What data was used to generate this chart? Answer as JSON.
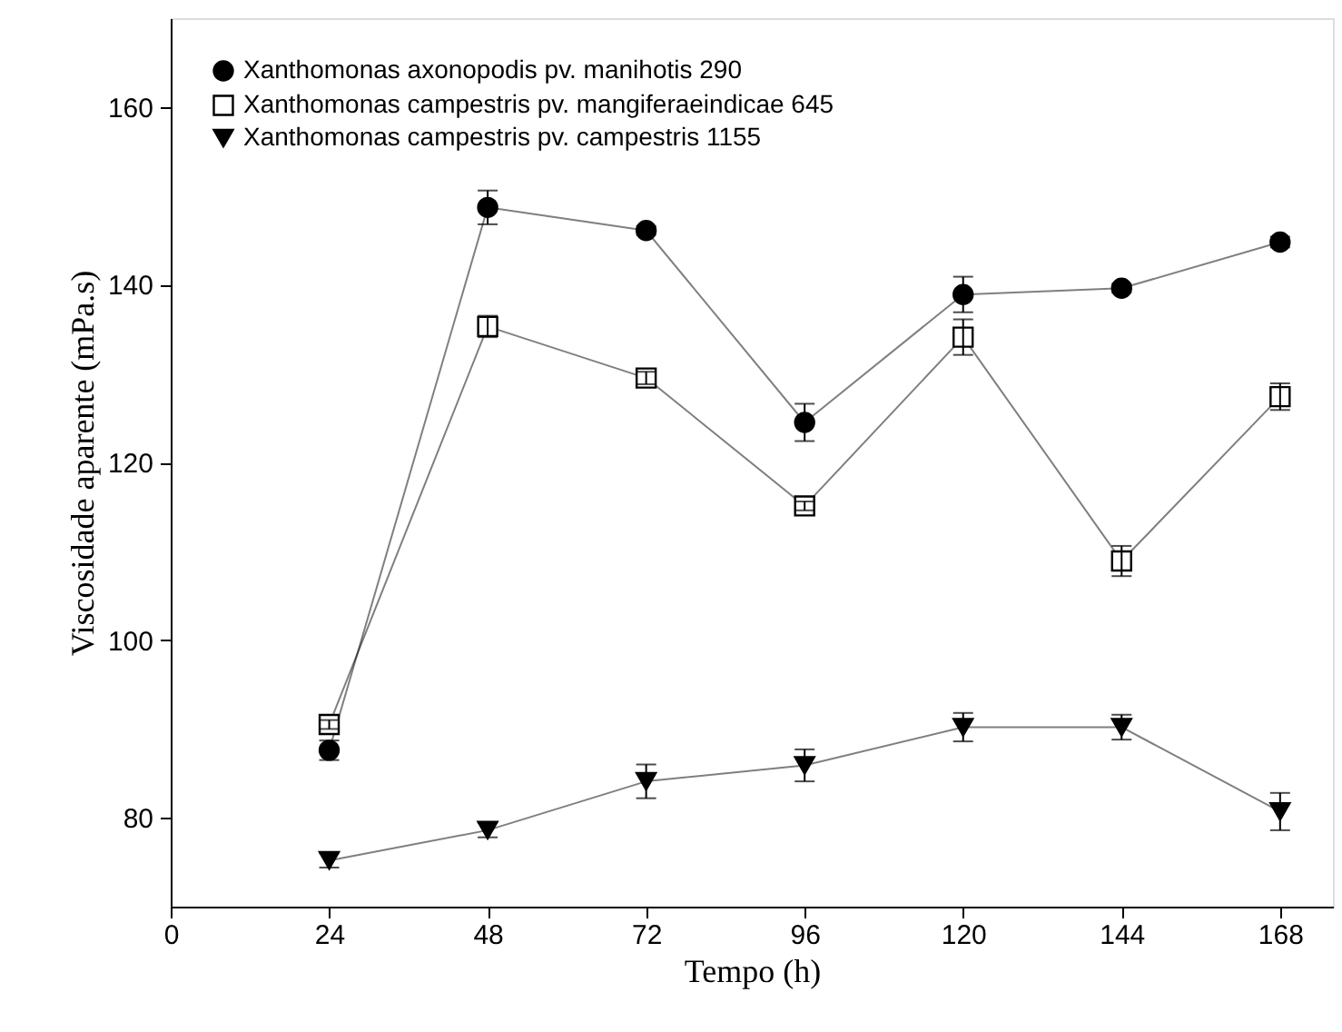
{
  "chart_data": {
    "type": "line",
    "xlabel": "Tempo (h)",
    "ylabel": "Viscosidade aparente (mPa.s)",
    "x": [
      24,
      48,
      72,
      96,
      120,
      144,
      168
    ],
    "xlim": [
      0,
      176
    ],
    "xticks": [
      0,
      24,
      48,
      72,
      96,
      120,
      144,
      168
    ],
    "ylim": [
      70,
      170
    ],
    "yticks": [
      80,
      100,
      120,
      140,
      160
    ],
    "grid": false,
    "legend": "top left",
    "line_style": "solid",
    "series": [
      {
        "name": "Xanthomonas axonopodis pv. manihotis 290",
        "color": "#000000",
        "marker": "circle",
        "values": [
          87.6,
          148.7,
          146.1,
          124.5,
          138.9,
          139.6,
          144.8
        ],
        "errors": [
          1.1,
          1.9,
          0.5,
          2.1,
          2.0,
          0.5,
          0.6
        ]
      },
      {
        "name": "Xanthomonas campestris pv. mangiferaeindicae 645",
        "color": "#000000",
        "marker": "square",
        "values": [
          90.5,
          135.3,
          129.5,
          115.1,
          134.1,
          108.9,
          127.4
        ],
        "errors": [
          0.5,
          1.2,
          0.7,
          0.5,
          2.0,
          1.7,
          1.5
        ]
      },
      {
        "name": "Xanthomonas campestris pv. campestris 1155",
        "color": "#000000",
        "marker": "triangle",
        "values": [
          75.2,
          78.6,
          84.1,
          85.9,
          90.2,
          90.2,
          80.7
        ],
        "errors": [
          0.8,
          0.8,
          1.9,
          1.8,
          1.6,
          1.4,
          2.1
        ]
      }
    ]
  }
}
